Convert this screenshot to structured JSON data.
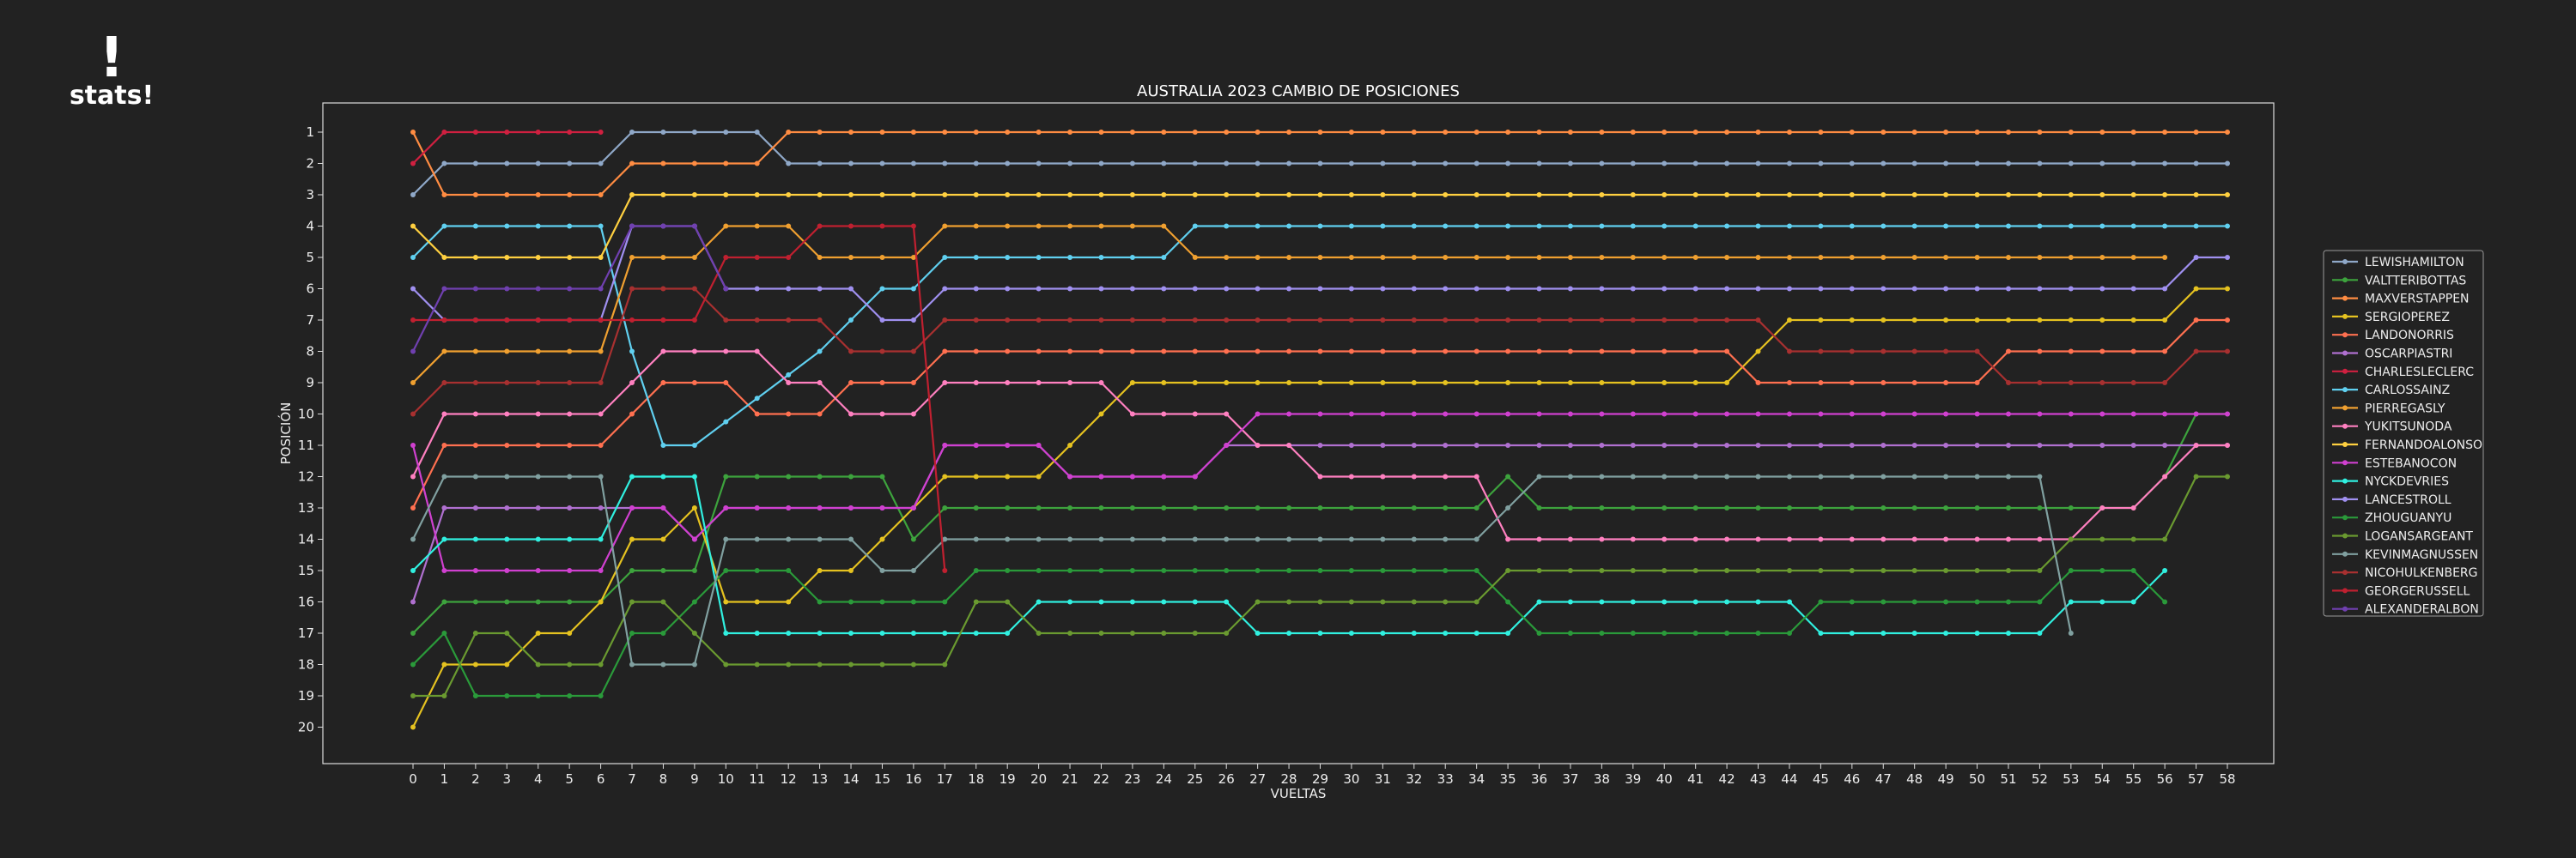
{
  "brand": {
    "mark": "!",
    "text": "stats!"
  },
  "chart_data": {
    "type": "line",
    "title": "AUSTRALIA 2023 CAMBIO DE POSICIONES",
    "xlabel": "VUELTAS",
    "ylabel": "POSICIÓN",
    "xlim": [
      0,
      58
    ],
    "ylim": [
      20,
      1
    ],
    "y_inverted": true,
    "grid": false,
    "legend_position": "right",
    "series": [
      {
        "name": "LEWISHAMILTON",
        "color": "#8fa8c8",
        "points": [
          [
            0,
            3
          ],
          [
            1,
            2
          ],
          [
            6,
            2
          ],
          [
            7,
            1
          ],
          [
            11,
            1
          ],
          [
            12,
            2
          ],
          [
            58,
            2
          ]
        ]
      },
      {
        "name": "VALTTERIBOTTAS",
        "color": "#3da33d",
        "points": [
          [
            0,
            17
          ],
          [
            1,
            16
          ],
          [
            6,
            16
          ],
          [
            7,
            15
          ],
          [
            9,
            15
          ],
          [
            10,
            12
          ],
          [
            14,
            12
          ],
          [
            15,
            12
          ],
          [
            16,
            14
          ],
          [
            17,
            13
          ],
          [
            34,
            13
          ],
          [
            35,
            12
          ],
          [
            36,
            13
          ],
          [
            55,
            13
          ],
          [
            56,
            12
          ],
          [
            57,
            10
          ],
          [
            58,
            10
          ]
        ]
      },
      {
        "name": "MAXVERSTAPPEN",
        "color": "#ff8c42",
        "points": [
          [
            0,
            1
          ],
          [
            1,
            3
          ],
          [
            6,
            3
          ],
          [
            7,
            2
          ],
          [
            11,
            2
          ],
          [
            12,
            1
          ],
          [
            58,
            1
          ]
        ]
      },
      {
        "name": "SERGIOPEREZ",
        "color": "#e5c220",
        "points": [
          [
            0,
            20
          ],
          [
            1,
            18
          ],
          [
            3,
            18
          ],
          [
            4,
            17
          ],
          [
            5,
            17
          ],
          [
            6,
            16
          ],
          [
            7,
            14
          ],
          [
            8,
            14
          ],
          [
            9,
            13
          ],
          [
            10,
            16
          ],
          [
            12,
            16
          ],
          [
            13,
            15
          ],
          [
            14,
            15
          ],
          [
            15,
            14
          ],
          [
            16,
            13
          ],
          [
            17,
            12
          ],
          [
            20,
            12
          ],
          [
            23,
            9
          ],
          [
            42,
            9
          ],
          [
            43,
            8
          ],
          [
            44,
            7
          ],
          [
            56,
            7
          ],
          [
            57,
            6
          ],
          [
            58,
            6
          ]
        ]
      },
      {
        "name": "LANDONORRIS",
        "color": "#ff7050",
        "points": [
          [
            0,
            13
          ],
          [
            1,
            11
          ],
          [
            6,
            11
          ],
          [
            7,
            10
          ],
          [
            8,
            9
          ],
          [
            10,
            9
          ],
          [
            11,
            10
          ],
          [
            13,
            10
          ],
          [
            14,
            9
          ],
          [
            16,
            9
          ],
          [
            17,
            8
          ],
          [
            42,
            8
          ],
          [
            43,
            9
          ],
          [
            50,
            9
          ],
          [
            51,
            8
          ],
          [
            56,
            8
          ],
          [
            57,
            7
          ],
          [
            58,
            7
          ]
        ]
      },
      {
        "name": "OSCARPIASTRI",
        "color": "#b070d0",
        "points": [
          [
            0,
            16
          ],
          [
            1,
            13
          ],
          [
            6,
            13
          ],
          [
            7,
            13
          ],
          [
            8,
            13
          ],
          [
            9,
            14
          ],
          [
            10,
            13
          ],
          [
            16,
            13
          ],
          [
            17,
            11
          ],
          [
            20,
            11
          ],
          [
            21,
            12
          ],
          [
            25,
            12
          ],
          [
            26,
            11
          ],
          [
            33,
            11
          ],
          [
            36,
            11
          ],
          [
            56,
            11
          ],
          [
            57,
            11
          ],
          [
            58,
            11
          ]
        ]
      },
      {
        "name": "CHARLESLECLERC",
        "color": "#d02040",
        "points": [
          [
            0,
            2
          ],
          [
            1,
            1
          ],
          [
            6,
            1
          ]
        ]
      },
      {
        "name": "CARLOSSAINZ",
        "color": "#60d0f0",
        "points": [
          [
            0,
            5
          ],
          [
            1,
            4
          ],
          [
            6,
            4
          ],
          [
            7,
            8
          ],
          [
            8,
            11
          ],
          [
            9,
            11
          ],
          [
            13,
            8
          ],
          [
            15,
            6
          ],
          [
            16,
            6
          ],
          [
            17,
            5
          ],
          [
            24,
            5
          ],
          [
            25,
            4
          ],
          [
            58,
            4
          ]
        ]
      },
      {
        "name": "PIERREGASLY",
        "color": "#f0a030",
        "points": [
          [
            0,
            9
          ],
          [
            1,
            8
          ],
          [
            6,
            8
          ],
          [
            7,
            5
          ],
          [
            9,
            5
          ],
          [
            10,
            4
          ],
          [
            12,
            4
          ],
          [
            13,
            5
          ],
          [
            16,
            5
          ],
          [
            17,
            4
          ],
          [
            24,
            4
          ],
          [
            25,
            5
          ],
          [
            56,
            5
          ]
        ]
      },
      {
        "name": "YUKITSUNODA",
        "color": "#ff80c0",
        "points": [
          [
            0,
            12
          ],
          [
            1,
            10
          ],
          [
            6,
            10
          ],
          [
            7,
            9
          ],
          [
            8,
            8
          ],
          [
            11,
            8
          ],
          [
            12,
            9
          ],
          [
            13,
            9
          ],
          [
            14,
            10
          ],
          [
            16,
            10
          ],
          [
            17,
            9
          ],
          [
            22,
            9
          ],
          [
            23,
            10
          ],
          [
            26,
            10
          ],
          [
            27,
            11
          ],
          [
            28,
            11
          ],
          [
            29,
            12
          ],
          [
            34,
            12
          ],
          [
            35,
            14
          ],
          [
            53,
            14
          ],
          [
            54,
            13
          ],
          [
            55,
            13
          ],
          [
            56,
            12
          ],
          [
            57,
            11
          ],
          [
            58,
            11
          ]
        ]
      },
      {
        "name": "FERNANDOALONSO",
        "color": "#ffd040",
        "points": [
          [
            0,
            4
          ],
          [
            1,
            5
          ],
          [
            6,
            5
          ],
          [
            7,
            3
          ],
          [
            58,
            3
          ]
        ]
      },
      {
        "name": "ESTEBANOCON",
        "color": "#d040d0",
        "points": [
          [
            0,
            11
          ],
          [
            1,
            15
          ],
          [
            6,
            15
          ],
          [
            7,
            13
          ],
          [
            8,
            13
          ],
          [
            9,
            14
          ],
          [
            10,
            13
          ],
          [
            16,
            13
          ],
          [
            17,
            11
          ],
          [
            20,
            11
          ],
          [
            21,
            12
          ],
          [
            25,
            12
          ],
          [
            26,
            11
          ],
          [
            27,
            10
          ],
          [
            58,
            10
          ]
        ]
      },
      {
        "name": "NYCKDEVRIES",
        "color": "#30f0e0",
        "points": [
          [
            0,
            15
          ],
          [
            1,
            14
          ],
          [
            6,
            14
          ],
          [
            7,
            12
          ],
          [
            9,
            12
          ],
          [
            10,
            17
          ],
          [
            19,
            17
          ],
          [
            20,
            16
          ],
          [
            26,
            16
          ],
          [
            27,
            17
          ],
          [
            35,
            17
          ],
          [
            36,
            16
          ],
          [
            44,
            16
          ],
          [
            45,
            17
          ],
          [
            52,
            17
          ],
          [
            53,
            16
          ],
          [
            55,
            16
          ],
          [
            56,
            15
          ]
        ]
      },
      {
        "name": "LANCESTROLL",
        "color": "#a090f0",
        "points": [
          [
            0,
            6
          ],
          [
            1,
            7
          ],
          [
            6,
            7
          ],
          [
            7,
            4
          ],
          [
            9,
            4
          ],
          [
            10,
            6
          ],
          [
            14,
            6
          ],
          [
            15,
            7
          ],
          [
            16,
            7
          ],
          [
            17,
            6
          ],
          [
            56,
            6
          ],
          [
            57,
            5
          ],
          [
            58,
            5
          ]
        ]
      },
      {
        "name": "ZHOUGUANYU",
        "color": "#2a9a3a",
        "points": [
          [
            0,
            18
          ],
          [
            1,
            17
          ],
          [
            2,
            19
          ],
          [
            6,
            19
          ],
          [
            7,
            17
          ],
          [
            8,
            17
          ],
          [
            9,
            16
          ],
          [
            10,
            15
          ],
          [
            12,
            15
          ],
          [
            13,
            16
          ],
          [
            17,
            16
          ],
          [
            18,
            15
          ],
          [
            34,
            15
          ],
          [
            35,
            16
          ],
          [
            36,
            17
          ],
          [
            44,
            17
          ],
          [
            45,
            16
          ],
          [
            52,
            16
          ],
          [
            53,
            15
          ],
          [
            55,
            15
          ],
          [
            56,
            16
          ]
        ]
      },
      {
        "name": "LOGANSARGEANT",
        "color": "#6a9a30",
        "points": [
          [
            0,
            19
          ],
          [
            1,
            19
          ],
          [
            2,
            17
          ],
          [
            3,
            17
          ],
          [
            4,
            18
          ],
          [
            6,
            18
          ],
          [
            7,
            16
          ],
          [
            8,
            16
          ],
          [
            9,
            17
          ],
          [
            10,
            18
          ],
          [
            17,
            18
          ],
          [
            18,
            16
          ],
          [
            19,
            16
          ],
          [
            20,
            17
          ],
          [
            26,
            17
          ],
          [
            27,
            16
          ],
          [
            34,
            16
          ],
          [
            35,
            15
          ],
          [
            52,
            15
          ],
          [
            53,
            14
          ],
          [
            56,
            14
          ],
          [
            57,
            12
          ],
          [
            58,
            12
          ]
        ]
      },
      {
        "name": "KEVINMAGNUSSEN",
        "color": "#80a0a0",
        "points": [
          [
            0,
            14
          ],
          [
            1,
            12
          ],
          [
            6,
            12
          ],
          [
            7,
            18
          ],
          [
            9,
            18
          ],
          [
            10,
            14
          ],
          [
            14,
            14
          ],
          [
            15,
            15
          ],
          [
            16,
            15
          ],
          [
            17,
            14
          ],
          [
            34,
            14
          ],
          [
            35,
            13
          ],
          [
            36,
            12
          ],
          [
            52,
            12
          ],
          [
            53,
            17
          ]
        ]
      },
      {
        "name": "NICOHULKENBERG",
        "color": "#a83030",
        "points": [
          [
            0,
            10
          ],
          [
            1,
            9
          ],
          [
            6,
            9
          ],
          [
            7,
            6
          ],
          [
            9,
            6
          ],
          [
            10,
            7
          ],
          [
            13,
            7
          ],
          [
            14,
            8
          ],
          [
            16,
            8
          ],
          [
            17,
            7
          ],
          [
            43,
            7
          ],
          [
            44,
            8
          ],
          [
            50,
            8
          ],
          [
            51,
            9
          ],
          [
            56,
            9
          ],
          [
            57,
            8
          ],
          [
            58,
            8
          ]
        ]
      },
      {
        "name": "GEORGERUSSELL",
        "color": "#c02030",
        "points": [
          [
            0,
            7
          ],
          [
            1,
            7
          ],
          [
            6,
            7
          ],
          [
            7,
            7
          ],
          [
            9,
            7
          ],
          [
            10,
            5
          ],
          [
            12,
            5
          ],
          [
            13,
            4
          ],
          [
            16,
            4
          ],
          [
            17,
            15
          ]
        ]
      },
      {
        "name": "ALEXANDERALBON",
        "color": "#7040b0",
        "points": [
          [
            0,
            8
          ],
          [
            1,
            6
          ],
          [
            6,
            6
          ],
          [
            7,
            4
          ],
          [
            9,
            4
          ],
          [
            10,
            6
          ]
        ]
      }
    ],
    "x_ticks": [
      0,
      1,
      2,
      3,
      4,
      5,
      6,
      7,
      8,
      9,
      10,
      11,
      12,
      13,
      14,
      15,
      16,
      17,
      18,
      19,
      20,
      21,
      22,
      23,
      24,
      25,
      26,
      27,
      28,
      29,
      30,
      31,
      32,
      33,
      34,
      35,
      36,
      37,
      38,
      39,
      40,
      41,
      42,
      43,
      44,
      45,
      46,
      47,
      48,
      49,
      50,
      51,
      52,
      53,
      54,
      55,
      56,
      57,
      58
    ],
    "y_ticks": [
      1,
      2,
      3,
      4,
      5,
      6,
      7,
      8,
      9,
      10,
      11,
      12,
      13,
      14,
      15,
      16,
      17,
      18,
      19,
      20
    ]
  }
}
